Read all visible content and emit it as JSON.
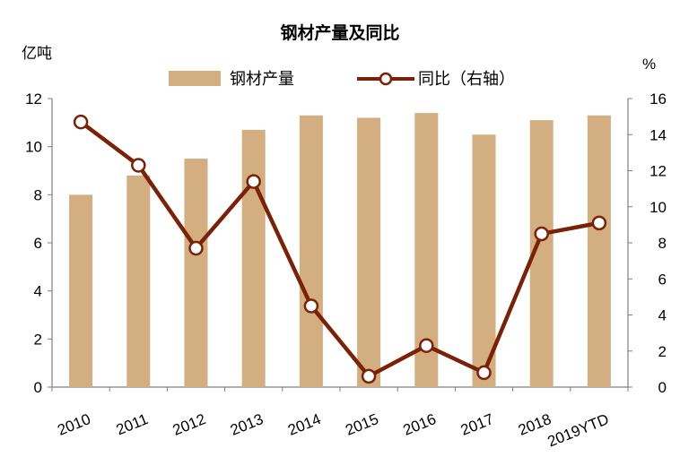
{
  "chart_data": {
    "type": "bar",
    "title": "钢材产量及同比",
    "categories": [
      "2010",
      "2011",
      "2012",
      "2013",
      "2014",
      "2015",
      "2016",
      "2017",
      "2018",
      "2019YTD"
    ],
    "series": [
      {
        "name": "钢材产量",
        "type": "bar",
        "axis": "left",
        "values": [
          8.0,
          8.8,
          9.5,
          10.7,
          11.3,
          11.2,
          11.4,
          10.5,
          11.1,
          11.3
        ]
      },
      {
        "name": "同比（右轴）",
        "type": "line",
        "axis": "right",
        "values": [
          14.7,
          12.3,
          7.7,
          11.4,
          4.5,
          0.6,
          2.3,
          0.8,
          8.5,
          9.1
        ]
      }
    ],
    "y_left": {
      "label": "亿吨",
      "ylim": [
        0,
        12
      ],
      "ticks": [
        "0",
        "2",
        "4",
        "6",
        "8",
        "10",
        "12"
      ]
    },
    "y_right": {
      "label": "%",
      "ylim": [
        0,
        16
      ],
      "ticks": [
        "0",
        "2",
        "4",
        "6",
        "8",
        "10",
        "12",
        "14",
        "16"
      ]
    },
    "legend_position": "top",
    "grid": false,
    "colors": {
      "bar": "#D2AE80",
      "line": "#7A2106",
      "marker_fill": "#FFFFFF",
      "axis": "#7F7F7F"
    }
  }
}
